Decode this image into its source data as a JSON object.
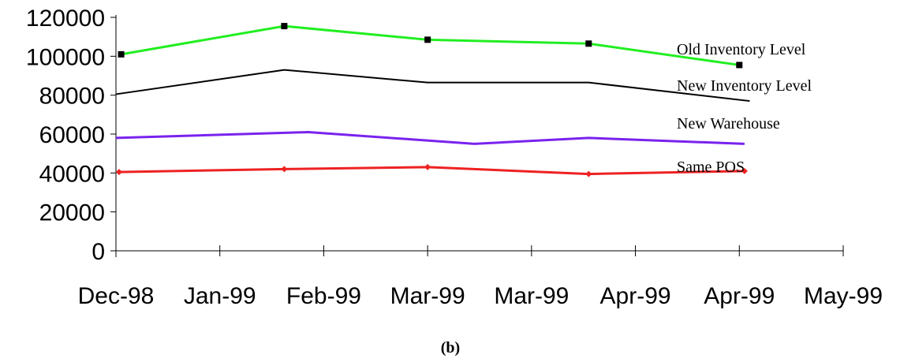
{
  "chart_data": {
    "type": "line",
    "x_categories": [
      "Dec-98",
      "Jan-99",
      "Feb-99",
      "Mar-99",
      "Mar-99",
      "Apr-99",
      "Apr-99",
      "May-99"
    ],
    "y_ticks": [
      "0",
      "20000",
      "40000",
      "60000",
      "80000",
      "100000",
      "120000"
    ],
    "ylim": [
      0,
      120000
    ],
    "grid": false,
    "series": [
      {
        "name": "Old Inventory Level",
        "color": "#22ee22",
        "marker": "square",
        "points": [
          {
            "x": 0.05,
            "y": 101000
          },
          {
            "x": 1.62,
            "y": 115500
          },
          {
            "x": 3.0,
            "y": 108500
          },
          {
            "x": 4.55,
            "y": 106500
          },
          {
            "x": 6.0,
            "y": 95500
          }
        ]
      },
      {
        "name": "New Inventory Level",
        "color": "#000000",
        "marker": "none",
        "points": [
          {
            "x": 0.0,
            "y": 80500
          },
          {
            "x": 1.62,
            "y": 93000
          },
          {
            "x": 3.0,
            "y": 86500
          },
          {
            "x": 4.55,
            "y": 86500
          },
          {
            "x": 6.1,
            "y": 77000
          }
        ]
      },
      {
        "name": "New Warehouse",
        "color": "#7a22ee",
        "marker": "none",
        "points": [
          {
            "x": 0.0,
            "y": 58000
          },
          {
            "x": 1.85,
            "y": 61000
          },
          {
            "x": 3.45,
            "y": 55000
          },
          {
            "x": 4.55,
            "y": 58000
          },
          {
            "x": 6.05,
            "y": 55000
          }
        ]
      },
      {
        "name": "Same POS",
        "color": "#ee2222",
        "marker": "diamond",
        "points": [
          {
            "x": 0.03,
            "y": 40500
          },
          {
            "x": 1.62,
            "y": 42000
          },
          {
            "x": 3.0,
            "y": 43000
          },
          {
            "x": 4.55,
            "y": 39500
          },
          {
            "x": 6.05,
            "y": 41000
          }
        ]
      }
    ]
  },
  "caption": "(b)"
}
